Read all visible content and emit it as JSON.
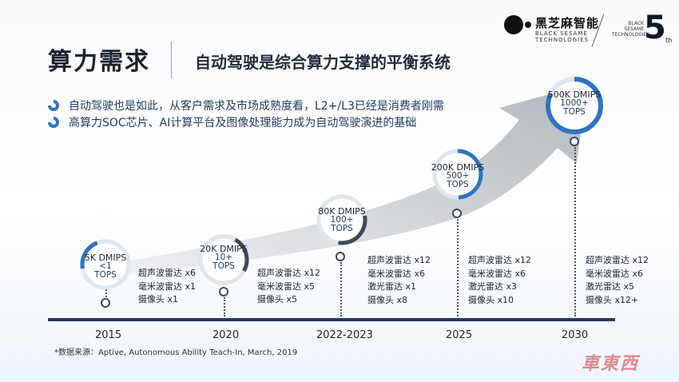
{
  "header": {
    "title": "算力需求",
    "subtitle": "自动驾驶是综合算力支撑的平衡系统"
  },
  "bullets": [
    "自动驾驶也是如此，从客户需求及市场成熟度看，L2+/L3已经是消费者刚需",
    "高算力SOC芯片、AI计算平台及图像处理能力成为自动驾驶演进的基础"
  ],
  "logo": {
    "cn": "黑芝麻智能",
    "en_line1": "BLACK SESAME",
    "en_line2": "TECHNOLOGIES",
    "anniv_en_1": "BLACK",
    "anniv_en_2": "SESAME",
    "anniv_en_3": "TECHNOLOGIES",
    "anniv_number": "5",
    "anniv_suffix": "th"
  },
  "milestones": [
    {
      "year": "2015",
      "dmips": "5K DMIPS",
      "tops_1": "<1",
      "tops_2": "TOPS",
      "sensors": [
        "超声波雷达 x6",
        "毫米波雷达 x1",
        "摄像头 x1"
      ]
    },
    {
      "year": "2020",
      "dmips": "20K DMIPS",
      "tops_1": "10+",
      "tops_2": "TOPS",
      "sensors": [
        "超声波雷达 x12",
        "毫米波雷达 x5",
        "摄像头 x5"
      ]
    },
    {
      "year": "2022-2023",
      "dmips": "80K DMIPS",
      "tops_1": "100+",
      "tops_2": "TOPS",
      "sensors": [
        "超声波雷达 x12",
        "毫米波雷达 x6",
        "激光雷达 x1",
        "摄像头 x8"
      ]
    },
    {
      "year": "2025",
      "dmips": "200K DMIPS",
      "tops_1": "500+",
      "tops_2": "TOPS",
      "sensors": [
        "超声波雷达 x12",
        "毫米波雷达 x6",
        "激光雷达 x3",
        "摄像头 x10"
      ]
    },
    {
      "year": "2030",
      "dmips": "500K DMIPS",
      "tops_1": "1000+",
      "tops_2": "TOPS",
      "sensors": [
        "超声波雷达 x12",
        "毫米波雷达 x6",
        "激光雷达 x5",
        "摄像头 x12+"
      ]
    }
  ],
  "footnote": "*数据来源：Aptive, Autonomous Ability Teach-In, March, 2019",
  "watermark": "車東西",
  "colors": {
    "accent": "#2f74c0",
    "dark": "#1f3a5f",
    "arrow": "#b9bfc5"
  }
}
